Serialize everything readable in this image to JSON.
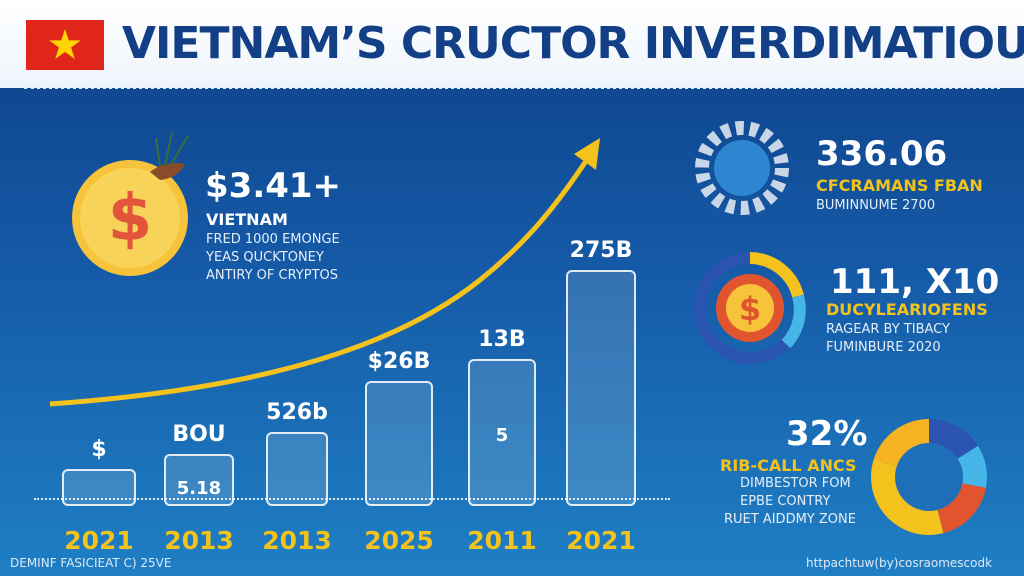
{
  "header": {
    "title": "VIETNAM’S CRUCTOR INVERDIMATIOUS",
    "flag_colors": {
      "field": "#e0261b",
      "star": "#ffd400"
    }
  },
  "coin_block": {
    "value": "$3.41+",
    "heading": "VIETNAM",
    "lines": [
      "FRED 1000 EMONGE",
      "YEAS QUCKTONEY",
      "ANTIRY OF CRYPTOS"
    ]
  },
  "right_stats": {
    "stat1": {
      "value": "336.06",
      "subtitle": "CFCRAMANS FBAN",
      "note": "BUMINNUME 2700"
    },
    "stat2": {
      "value": "111, X10",
      "subtitle": "DUCYLEARIOFENS",
      "note1": "RAGEAR BY TIBACY",
      "note2": "FUMINBURE 2020"
    },
    "stat3": {
      "value": "32%",
      "subtitle": "RIB-CALL ANCS",
      "lines": [
        "DIMBESTOR FOM",
        "EPBE CONTRY",
        "RUET AIDDMY ZONE"
      ]
    }
  },
  "chart_data": {
    "type": "bar",
    "categories": [
      "2021",
      "2013",
      "2013",
      "2025",
      "2011",
      "2021"
    ],
    "bar_labels": [
      "$",
      "BOU",
      "526b",
      "$26B",
      "13B",
      "275B"
    ],
    "inner_labels": [
      "",
      "5.18",
      "",
      "",
      "5",
      ""
    ],
    "values": [
      5,
      7,
      10,
      17,
      20,
      32
    ],
    "trend": "rising"
  },
  "footer": {
    "left": "DEMINF FASICIEAT C) 25VE",
    "right": "httpachtuw(by)cosraomescodk"
  },
  "colors": {
    "accent_yellow": "#f3c21c",
    "title_blue": "#123f86",
    "donut_slices": [
      "#2a54b0",
      "#46b5e8",
      "#e0552e",
      "#f3c21c",
      "#f5b324"
    ]
  }
}
